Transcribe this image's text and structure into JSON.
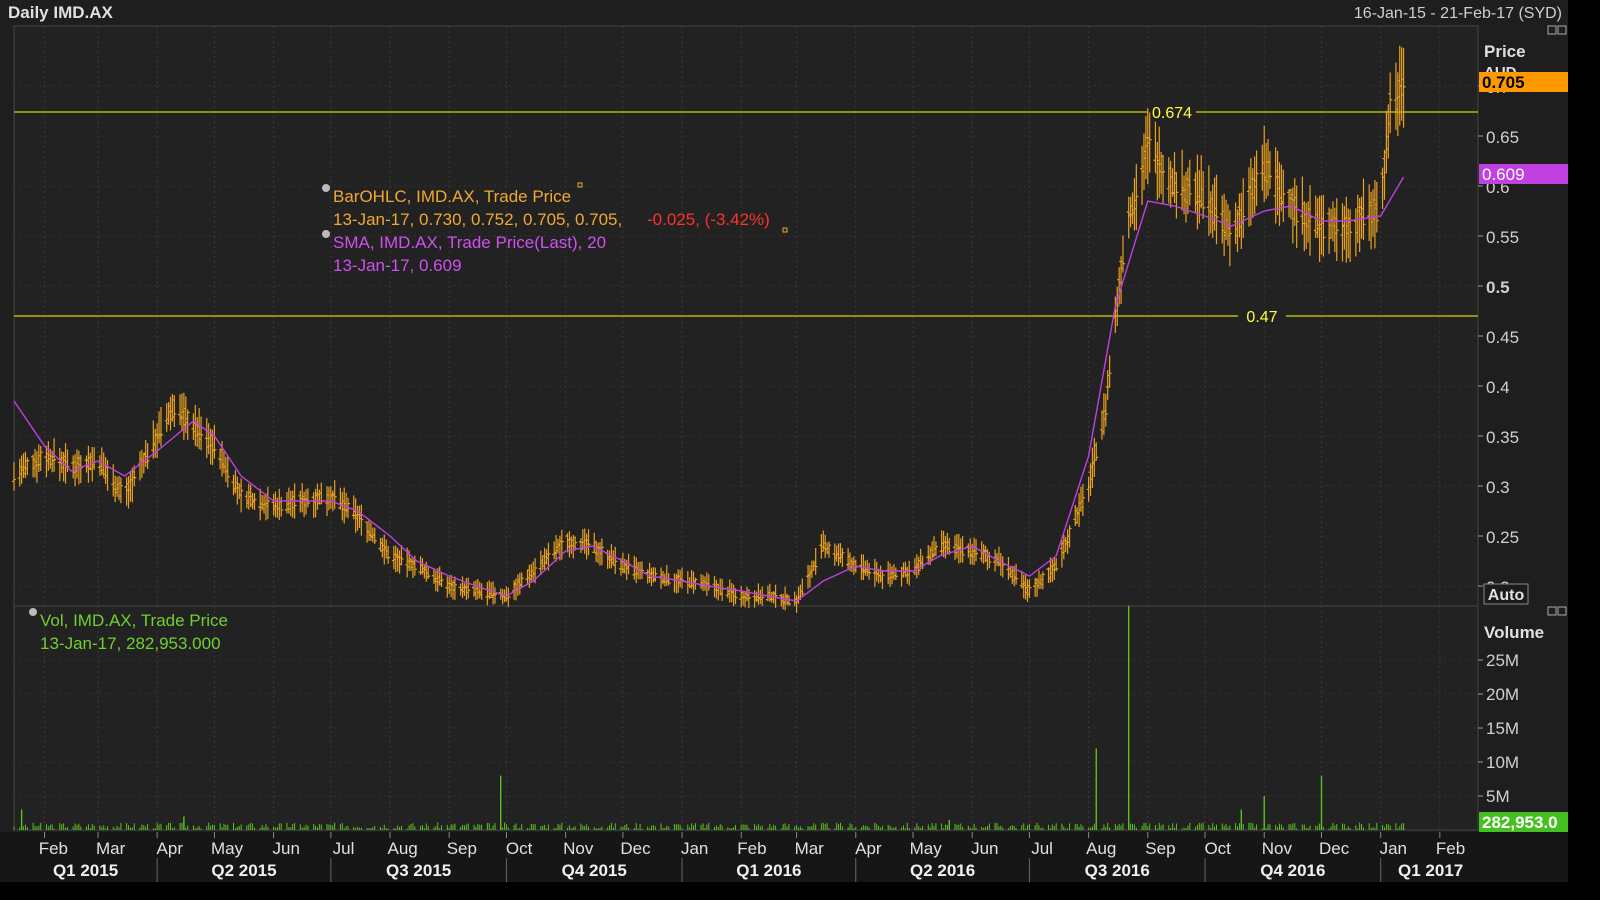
{
  "header": {
    "title": "Daily IMD.AX",
    "date_range": "16-Jan-15 - 21-Feb-17 (SYD)"
  },
  "price_axis": {
    "title": "Price",
    "unit": "AUD",
    "ticks": [
      "0.7",
      "0.65",
      "0.6",
      "0.55",
      "0.5",
      "0.45",
      "0.4",
      "0.35",
      "0.3",
      "0.25",
      "0.2"
    ],
    "last_price_label": "0.705",
    "sma_label": "0.609",
    "auto_button": "Auto"
  },
  "volume_axis": {
    "title": "Volume",
    "ticks": [
      "25M",
      "20M",
      "15M",
      "10M",
      "5M"
    ],
    "last_volume_label": "282,953.0"
  },
  "horizontal_lines": [
    {
      "value": 0.674,
      "label": "0.674"
    },
    {
      "value": 0.47,
      "label": "0.47"
    }
  ],
  "legend": {
    "ohlc_title": "BarOHLC, IMD.AX, Trade Price",
    "ohlc_values": "13-Jan-17, 0.730, 0.752, 0.705, 0.705,",
    "ohlc_change": "-0.025, (-3.42%)",
    "sma_title": "SMA, IMD.AX, Trade Price(Last),  20",
    "sma_values": "13-Jan-17, 0.609",
    "vol_title": "Vol, IMD.AX, Trade Price",
    "vol_values": "13-Jan-17, 282,953.000"
  },
  "x_axis": {
    "months": [
      "Feb",
      "Mar",
      "Apr",
      "May",
      "Jun",
      "Jul",
      "Aug",
      "Sep",
      "Oct",
      "Nov",
      "Dec",
      "Jan",
      "Feb",
      "Mar",
      "Apr",
      "May",
      "Jun",
      "Jul",
      "Aug",
      "Sep",
      "Oct",
      "Nov",
      "Dec",
      "Jan",
      "Feb"
    ],
    "quarters": [
      "Q1 2015",
      "Q2 2015",
      "Q3 2015",
      "Q4 2015",
      "Q1 2016",
      "Q2 2016",
      "Q3 2016",
      "Q4 2016",
      "Q1 2017"
    ]
  },
  "colors": {
    "bars": "#e8a020",
    "sma": "#c040e0",
    "volume": "#5cc020",
    "hline": "#d4d40a",
    "last_price_bg": "#ff9900",
    "sma_bg": "#c040e0",
    "volume_bg": "#44c020"
  },
  "chart_data": {
    "type": "line",
    "series": [
      {
        "name": "BarOHLC, IMD.AX, Trade Price",
        "x": [
          "2015-01-16",
          "2015-02-01",
          "2015-02-15",
          "2015-03-01",
          "2015-03-15",
          "2015-04-01",
          "2015-04-10",
          "2015-04-20",
          "2015-05-01",
          "2015-05-15",
          "2015-06-01",
          "2015-06-15",
          "2015-07-01",
          "2015-07-15",
          "2015-08-01",
          "2015-08-15",
          "2015-09-01",
          "2015-09-15",
          "2015-10-01",
          "2015-10-15",
          "2015-11-01",
          "2015-11-15",
          "2015-12-01",
          "2015-12-15",
          "2016-01-01",
          "2016-01-15",
          "2016-02-01",
          "2016-02-15",
          "2016-03-01",
          "2016-03-15",
          "2016-04-01",
          "2016-04-15",
          "2016-05-01",
          "2016-05-15",
          "2016-06-01",
          "2016-06-15",
          "2016-07-01",
          "2016-07-15",
          "2016-08-01",
          "2016-08-10",
          "2016-08-20",
          "2016-09-01",
          "2016-09-15",
          "2016-10-01",
          "2016-10-15",
          "2016-11-01",
          "2016-11-15",
          "2016-12-01",
          "2016-12-15",
          "2017-01-01",
          "2017-01-06",
          "2017-01-13"
        ],
        "values": [
          0.31,
          0.33,
          0.32,
          0.325,
          0.29,
          0.35,
          0.38,
          0.36,
          0.34,
          0.29,
          0.28,
          0.285,
          0.29,
          0.27,
          0.23,
          0.22,
          0.2,
          0.195,
          0.19,
          0.215,
          0.245,
          0.24,
          0.22,
          0.21,
          0.205,
          0.2,
          0.19,
          0.19,
          0.185,
          0.24,
          0.22,
          0.21,
          0.215,
          0.24,
          0.235,
          0.225,
          0.195,
          0.22,
          0.3,
          0.38,
          0.55,
          0.64,
          0.6,
          0.59,
          0.55,
          0.62,
          0.58,
          0.56,
          0.56,
          0.58,
          0.68,
          0.705
        ]
      },
      {
        "name": "SMA, IMD.AX, Trade Price(Last),  20",
        "x": [
          "2015-01-16",
          "2015-02-01",
          "2015-02-15",
          "2015-03-01",
          "2015-03-15",
          "2015-04-01",
          "2015-04-20",
          "2015-05-01",
          "2015-05-15",
          "2015-06-01",
          "2015-06-15",
          "2015-07-01",
          "2015-07-15",
          "2015-08-01",
          "2015-08-15",
          "2015-09-01",
          "2015-09-15",
          "2015-10-01",
          "2015-10-15",
          "2015-11-01",
          "2015-11-15",
          "2015-12-01",
          "2015-12-15",
          "2016-01-01",
          "2016-01-15",
          "2016-02-01",
          "2016-02-15",
          "2016-03-01",
          "2016-03-15",
          "2016-04-01",
          "2016-04-15",
          "2016-05-01",
          "2016-05-15",
          "2016-06-01",
          "2016-06-15",
          "2016-07-01",
          "2016-07-15",
          "2016-08-01",
          "2016-08-15",
          "2016-09-01",
          "2016-09-15",
          "2016-10-01",
          "2016-10-15",
          "2016-11-01",
          "2016-11-15",
          "2016-12-01",
          "2016-12-15",
          "2017-01-01",
          "2017-01-13"
        ],
        "values": [
          0.385,
          0.34,
          0.315,
          0.325,
          0.31,
          0.335,
          0.365,
          0.35,
          0.31,
          0.285,
          0.285,
          0.285,
          0.275,
          0.25,
          0.225,
          0.21,
          0.2,
          0.19,
          0.205,
          0.235,
          0.24,
          0.225,
          0.21,
          0.205,
          0.2,
          0.195,
          0.19,
          0.185,
          0.205,
          0.22,
          0.215,
          0.215,
          0.23,
          0.24,
          0.225,
          0.21,
          0.23,
          0.33,
          0.48,
          0.585,
          0.58,
          0.57,
          0.56,
          0.575,
          0.58,
          0.565,
          0.565,
          0.57,
          0.609
        ]
      },
      {
        "name": "Vol, IMD.AX, Trade Price",
        "x": [
          "2015-01-20",
          "2015-04-15",
          "2015-09-28",
          "2016-05-20",
          "2016-08-05",
          "2016-08-22",
          "2016-10-20",
          "2016-11-01",
          "2016-12-01",
          "2017-01-13"
        ],
        "values": [
          3000000,
          2000000,
          8000000,
          1500000,
          12000000,
          33000000,
          3000000,
          5000000,
          8000000,
          282953
        ]
      }
    ],
    "ylim": [
      0.18,
      0.76
    ],
    "volume_ylim": [
      0,
      30000000
    ],
    "xlim": [
      "2015-01-16",
      "2017-02-21"
    ]
  }
}
